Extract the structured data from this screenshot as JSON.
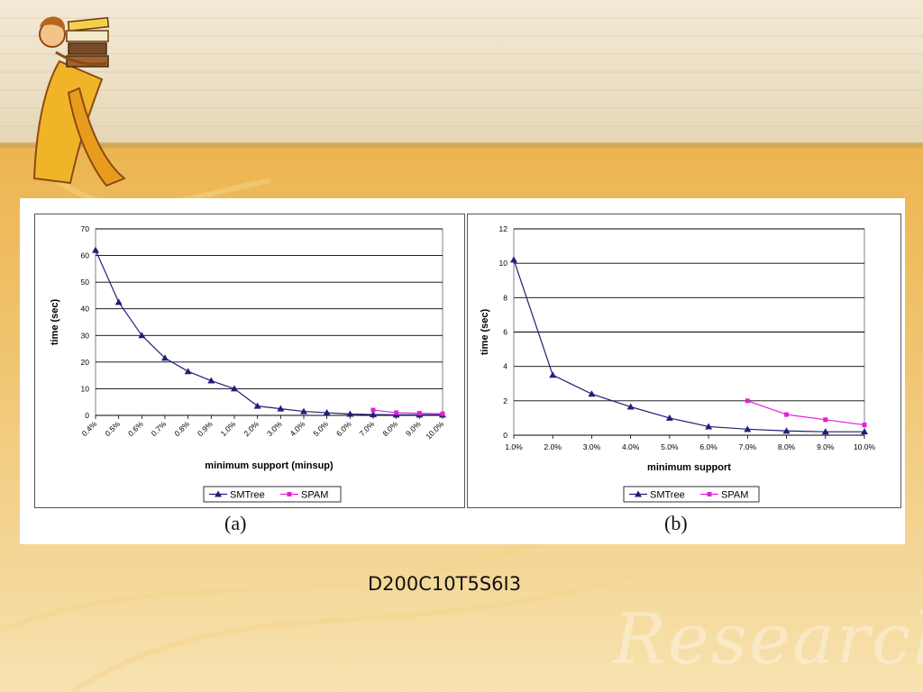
{
  "slide": {
    "dataset_label": "D200C10T5S6I3",
    "watermark_text": "Research",
    "colors": {
      "accent": "#e8a832",
      "smtree": "#1f1f7a",
      "spam": "#e020d8"
    }
  },
  "decor": {
    "icon": "woman-carrying-books-clipart"
  },
  "chart_data": [
    {
      "type": "line",
      "caption": "(a)",
      "title": "",
      "xlabel": "minimum support (minsup)",
      "ylabel": "time (sec)",
      "ylim": [
        0,
        70
      ],
      "yticks": [
        0,
        10,
        20,
        30,
        40,
        50,
        60,
        70
      ],
      "grid": true,
      "legend": "bottom-center",
      "categories": [
        "0.4%",
        "0.5%",
        "0.6%",
        "0.7%",
        "0.8%",
        "0.9%",
        "1.0%",
        "2.0%",
        "3.0%",
        "4.0%",
        "5.0%",
        "6.0%",
        "7.0%",
        "8.0%",
        "9.0%",
        "10.0%"
      ],
      "series": [
        {
          "name": "SMTree",
          "color": "#1f1f7a",
          "marker": "triangle",
          "values": [
            62,
            42.5,
            30,
            21.5,
            16.5,
            13,
            10,
            3.5,
            2.5,
            1.5,
            1,
            0.5,
            0.3,
            0.2,
            0.2,
            0.2
          ]
        },
        {
          "name": "SPAM",
          "color": "#e020d8",
          "marker": "square",
          "values": [
            null,
            null,
            null,
            null,
            null,
            null,
            null,
            null,
            null,
            null,
            null,
            null,
            2,
            1,
            0.8,
            0.6
          ]
        }
      ]
    },
    {
      "type": "line",
      "caption": "(b)",
      "title": "",
      "xlabel": "minimum support",
      "ylabel": "time (sec)",
      "ylim": [
        0,
        12
      ],
      "yticks": [
        0,
        2,
        4,
        6,
        8,
        10,
        12
      ],
      "grid": true,
      "legend": "bottom-center",
      "categories": [
        "1.0%",
        "2.0%",
        "3.0%",
        "4.0%",
        "5.0%",
        "6.0%",
        "7.0%",
        "8.0%",
        "9.0%",
        "10.0%"
      ],
      "series": [
        {
          "name": "SMTree",
          "color": "#1f1f7a",
          "marker": "triangle",
          "values": [
            10.2,
            3.5,
            2.4,
            1.65,
            1,
            0.5,
            0.35,
            0.25,
            0.2,
            0.2
          ]
        },
        {
          "name": "SPAM",
          "color": "#e020d8",
          "marker": "square",
          "values": [
            null,
            null,
            null,
            null,
            null,
            null,
            2,
            1.2,
            0.9,
            0.6
          ]
        }
      ]
    }
  ]
}
